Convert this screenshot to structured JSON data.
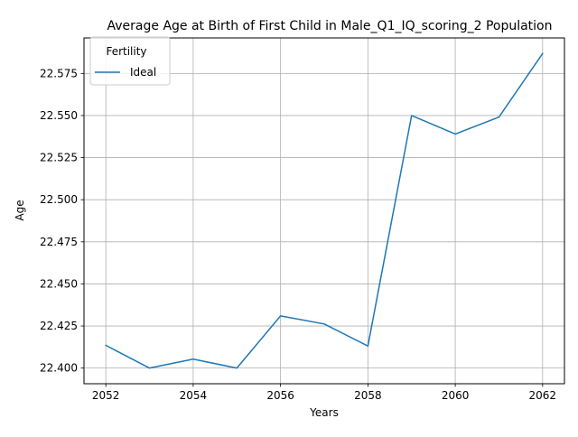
{
  "chart_data": {
    "type": "line",
    "title": "Average Age at Birth of First Child in Male_Q1_IQ_scoring_2 Population",
    "xlabel": "Years",
    "ylabel": "Age",
    "legend_title": "Fertility",
    "legend_position": "top-left",
    "grid": true,
    "xlim": [
      2051.5,
      2062.5
    ],
    "ylim": [
      22.3907,
      22.5961
    ],
    "xticks": [
      2052,
      2054,
      2056,
      2058,
      2060,
      2062
    ],
    "yticks": [
      22.4,
      22.425,
      22.45,
      22.475,
      22.5,
      22.525,
      22.55,
      22.575
    ],
    "x": [
      2052,
      2053,
      2054,
      2055,
      2056,
      2057,
      2058,
      2059,
      2060,
      2061,
      2062
    ],
    "series": [
      {
        "name": "Ideal",
        "color": "#1f77b4",
        "values": [
          22.4135,
          22.4,
          22.4053,
          22.4,
          22.431,
          22.4262,
          22.4131,
          22.55,
          22.539,
          22.5491,
          22.5868
        ]
      }
    ]
  }
}
